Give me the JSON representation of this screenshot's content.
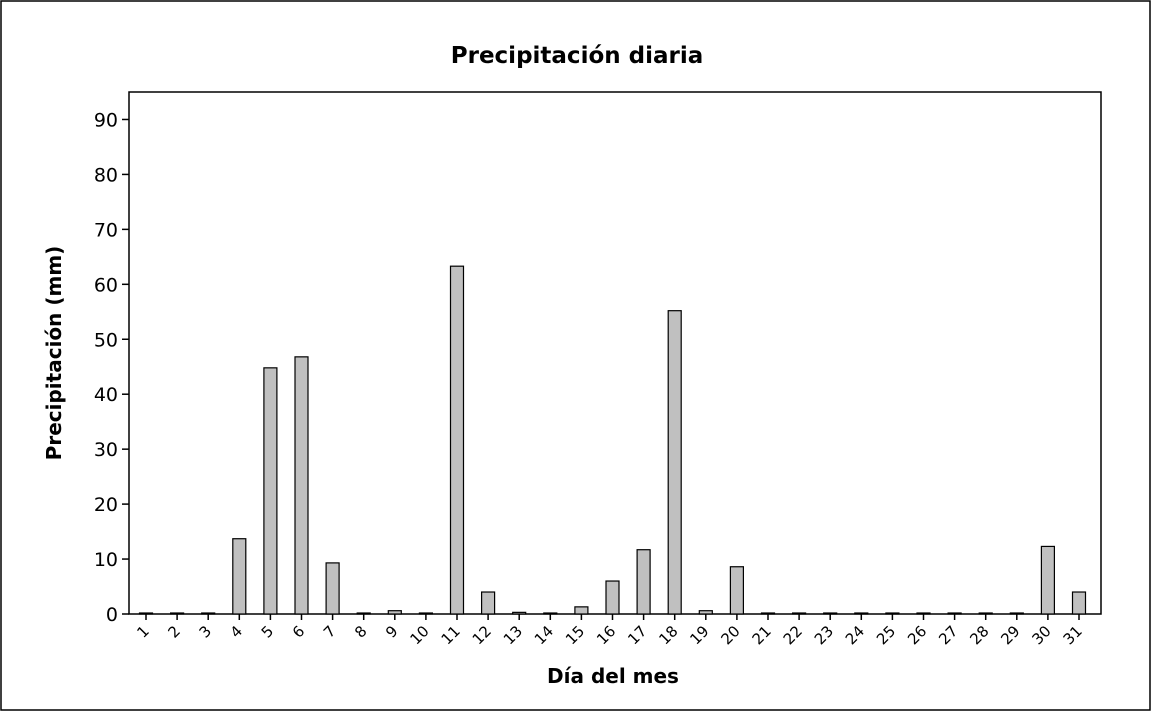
{
  "chart_data": {
    "type": "bar",
    "title": "Precipitación diaria",
    "xlabel": "Día del mes",
    "ylabel": "Precipitación (mm)",
    "ylim": [
      0,
      95
    ],
    "yticks": [
      0,
      10,
      20,
      30,
      40,
      50,
      60,
      70,
      80,
      90
    ],
    "grid": false,
    "categories": [
      "1",
      "2",
      "3",
      "4",
      "5",
      "6",
      "7",
      "8",
      "9",
      "10",
      "11",
      "12",
      "13",
      "14",
      "15",
      "16",
      "17",
      "18",
      "19",
      "20",
      "21",
      "22",
      "23",
      "24",
      "25",
      "26",
      "27",
      "28",
      "29",
      "30",
      "31"
    ],
    "values": [
      0,
      0,
      0,
      13.7,
      44.8,
      46.8,
      9.3,
      0,
      0.6,
      0,
      63.3,
      4,
      0.3,
      0,
      1.3,
      6,
      11.7,
      55.2,
      0.6,
      8.6,
      0,
      0,
      0,
      0,
      0,
      0,
      0,
      0,
      0,
      12.3,
      4
    ],
    "colors": {
      "bar_fill": "#c0c0c0",
      "bar_stroke": "#000000",
      "frame": "#000000"
    }
  }
}
